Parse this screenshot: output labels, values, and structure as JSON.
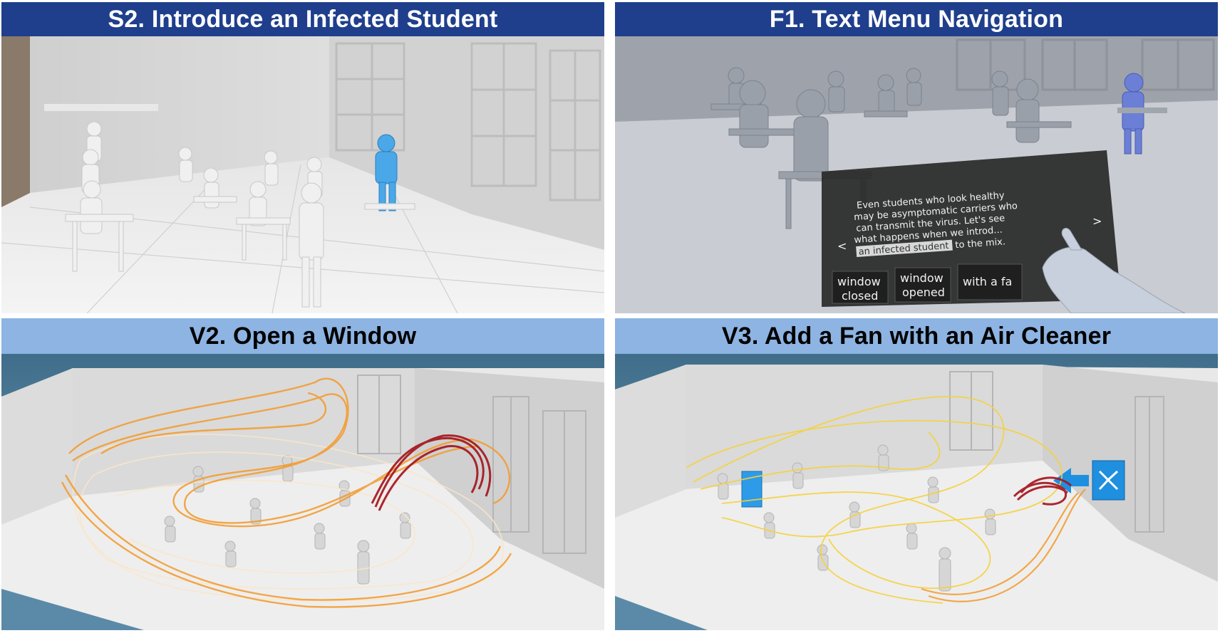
{
  "panels": [
    {
      "id": "S2",
      "title": "S2. Introduce an Infected Student"
    },
    {
      "id": "F1",
      "title": "F1. Text Menu Navigation"
    },
    {
      "id": "V2",
      "title": "V2. Open a Window"
    },
    {
      "id": "V3",
      "title": "V3. Add a Fan with an Air Cleaner"
    }
  ],
  "menu": {
    "lines": [
      "Even students who look healthy",
      "may be asymptomatic carriers who",
      "can transmit the virus. Let's see",
      "what happens when we introd...",
      "an infected student to the mix."
    ],
    "highlight": "an infected student",
    "after_highlight": "to the mix.",
    "prev_arrow": "<",
    "next_arrow": ">",
    "buttons": [
      {
        "line1": "window",
        "line2": "closed"
      },
      {
        "line1": "window",
        "line2": "opened"
      },
      {
        "line1": "with a fa",
        "line2": ""
      }
    ]
  },
  "colors": {
    "title_dark": "#1f3f8c",
    "title_light": "#8db4e2",
    "infected_student": "#4aa8e8",
    "stream_orange": "#f39a2c",
    "stream_dark_red": "#a3121a",
    "stream_yellow": "#f5d23c",
    "fan_blue": "#1f8fe0"
  }
}
